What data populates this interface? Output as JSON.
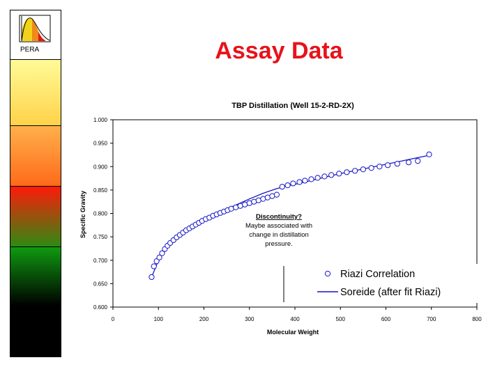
{
  "sidebar": {
    "logo_label": "PERA"
  },
  "page": {
    "title": "Assay Data"
  },
  "colors": {
    "title": "#e8121a",
    "series_line": "#1414c8",
    "marker_edge": "#1414c8"
  },
  "chart_data": {
    "type": "scatter",
    "title": "TBP Distillation (Well 15-2-RD-2X)",
    "xlabel": "Molecular Weight",
    "ylabel": "Specific Gravity",
    "xlim": [
      0,
      800
    ],
    "ylim": [
      0.6,
      1.0
    ],
    "xticks": [
      0,
      100,
      200,
      300,
      400,
      500,
      600,
      700,
      800
    ],
    "yticks": [
      0.6,
      0.65,
      0.7,
      0.75,
      0.8,
      0.85,
      0.9,
      0.95,
      1.0
    ],
    "xtick_labels": [
      "0",
      "100",
      "200",
      "300",
      "400",
      "500",
      "600",
      "700",
      "800"
    ],
    "ytick_labels": [
      "0.600",
      "0.650",
      "0.700",
      "0.750",
      "0.800",
      "0.850",
      "0.900",
      "0.950",
      "1.000"
    ],
    "grid": false,
    "legend_position": "bottom-right",
    "annotation": {
      "heading": "Discontinuity?",
      "lines": [
        "Maybe associated with",
        "change in distillation",
        "pressure."
      ]
    },
    "series": [
      {
        "name": "Riazi Correlation",
        "kind": "markers",
        "x": [
          85,
          90,
          96,
          102,
          108,
          114,
          120,
          126,
          133,
          140,
          147,
          154,
          161,
          168,
          175,
          182,
          189,
          196,
          204,
          212,
          220,
          228,
          236,
          244,
          252,
          260,
          270,
          280,
          290,
          300,
          310,
          320,
          330,
          340,
          350,
          360,
          372,
          384,
          396,
          410,
          422,
          436,
          450,
          465,
          480,
          497,
          514,
          532,
          550,
          568,
          586,
          604,
          625,
          650,
          670,
          695
        ],
        "y": [
          0.664,
          0.687,
          0.698,
          0.706,
          0.715,
          0.724,
          0.731,
          0.737,
          0.743,
          0.749,
          0.754,
          0.759,
          0.764,
          0.768,
          0.772,
          0.776,
          0.78,
          0.784,
          0.788,
          0.791,
          0.795,
          0.798,
          0.801,
          0.804,
          0.807,
          0.81,
          0.813,
          0.816,
          0.819,
          0.822,
          0.825,
          0.828,
          0.831,
          0.834,
          0.837,
          0.84,
          0.857,
          0.86,
          0.864,
          0.867,
          0.87,
          0.873,
          0.876,
          0.879,
          0.882,
          0.885,
          0.888,
          0.891,
          0.894,
          0.897,
          0.9,
          0.903,
          0.906,
          0.909,
          0.912,
          0.926
        ]
      },
      {
        "name": "Soreide (after fit Riazi)",
        "kind": "line",
        "x": [
          85,
          100,
          120,
          140,
          160,
          180,
          200,
          225,
          250,
          275,
          300,
          330,
          360,
          380,
          400,
          430,
          460,
          500,
          540,
          580,
          620,
          660,
          700
        ],
        "y": [
          0.664,
          0.7,
          0.728,
          0.748,
          0.763,
          0.775,
          0.786,
          0.798,
          0.809,
          0.82,
          0.831,
          0.843,
          0.853,
          0.858,
          0.862,
          0.869,
          0.876,
          0.885,
          0.893,
          0.901,
          0.909,
          0.917,
          0.925
        ]
      }
    ]
  }
}
